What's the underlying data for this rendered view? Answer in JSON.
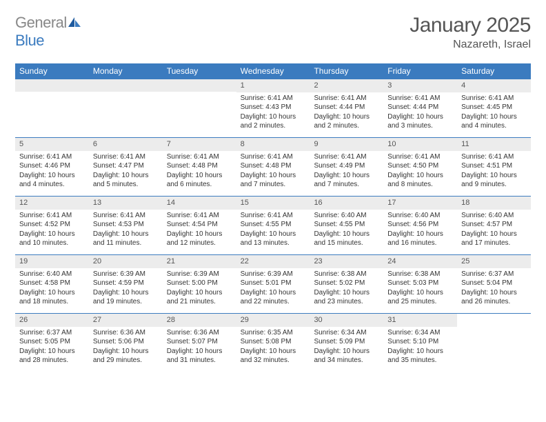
{
  "logo": {
    "text_gray": "General",
    "text_blue": "Blue"
  },
  "header": {
    "month_title": "January 2025",
    "location": "Nazareth, Israel"
  },
  "colors": {
    "header_bg": "#3b7bbf",
    "day_num_bg": "#ececec",
    "week_divider": "#3b7bbf",
    "text": "#333333",
    "title_text": "#555555",
    "logo_gray": "#888888",
    "logo_blue": "#3b7bbf"
  },
  "day_names": [
    "Sunday",
    "Monday",
    "Tuesday",
    "Wednesday",
    "Thursday",
    "Friday",
    "Saturday"
  ],
  "weeks": [
    [
      null,
      null,
      null,
      {
        "num": "1",
        "sunrise": "Sunrise: 6:41 AM",
        "sunset": "Sunset: 4:43 PM",
        "daylight": "Daylight: 10 hours and 2 minutes."
      },
      {
        "num": "2",
        "sunrise": "Sunrise: 6:41 AM",
        "sunset": "Sunset: 4:44 PM",
        "daylight": "Daylight: 10 hours and 2 minutes."
      },
      {
        "num": "3",
        "sunrise": "Sunrise: 6:41 AM",
        "sunset": "Sunset: 4:44 PM",
        "daylight": "Daylight: 10 hours and 3 minutes."
      },
      {
        "num": "4",
        "sunrise": "Sunrise: 6:41 AM",
        "sunset": "Sunset: 4:45 PM",
        "daylight": "Daylight: 10 hours and 4 minutes."
      }
    ],
    [
      {
        "num": "5",
        "sunrise": "Sunrise: 6:41 AM",
        "sunset": "Sunset: 4:46 PM",
        "daylight": "Daylight: 10 hours and 4 minutes."
      },
      {
        "num": "6",
        "sunrise": "Sunrise: 6:41 AM",
        "sunset": "Sunset: 4:47 PM",
        "daylight": "Daylight: 10 hours and 5 minutes."
      },
      {
        "num": "7",
        "sunrise": "Sunrise: 6:41 AM",
        "sunset": "Sunset: 4:48 PM",
        "daylight": "Daylight: 10 hours and 6 minutes."
      },
      {
        "num": "8",
        "sunrise": "Sunrise: 6:41 AM",
        "sunset": "Sunset: 4:48 PM",
        "daylight": "Daylight: 10 hours and 7 minutes."
      },
      {
        "num": "9",
        "sunrise": "Sunrise: 6:41 AM",
        "sunset": "Sunset: 4:49 PM",
        "daylight": "Daylight: 10 hours and 7 minutes."
      },
      {
        "num": "10",
        "sunrise": "Sunrise: 6:41 AM",
        "sunset": "Sunset: 4:50 PM",
        "daylight": "Daylight: 10 hours and 8 minutes."
      },
      {
        "num": "11",
        "sunrise": "Sunrise: 6:41 AM",
        "sunset": "Sunset: 4:51 PM",
        "daylight": "Daylight: 10 hours and 9 minutes."
      }
    ],
    [
      {
        "num": "12",
        "sunrise": "Sunrise: 6:41 AM",
        "sunset": "Sunset: 4:52 PM",
        "daylight": "Daylight: 10 hours and 10 minutes."
      },
      {
        "num": "13",
        "sunrise": "Sunrise: 6:41 AM",
        "sunset": "Sunset: 4:53 PM",
        "daylight": "Daylight: 10 hours and 11 minutes."
      },
      {
        "num": "14",
        "sunrise": "Sunrise: 6:41 AM",
        "sunset": "Sunset: 4:54 PM",
        "daylight": "Daylight: 10 hours and 12 minutes."
      },
      {
        "num": "15",
        "sunrise": "Sunrise: 6:41 AM",
        "sunset": "Sunset: 4:55 PM",
        "daylight": "Daylight: 10 hours and 13 minutes."
      },
      {
        "num": "16",
        "sunrise": "Sunrise: 6:40 AM",
        "sunset": "Sunset: 4:55 PM",
        "daylight": "Daylight: 10 hours and 15 minutes."
      },
      {
        "num": "17",
        "sunrise": "Sunrise: 6:40 AM",
        "sunset": "Sunset: 4:56 PM",
        "daylight": "Daylight: 10 hours and 16 minutes."
      },
      {
        "num": "18",
        "sunrise": "Sunrise: 6:40 AM",
        "sunset": "Sunset: 4:57 PM",
        "daylight": "Daylight: 10 hours and 17 minutes."
      }
    ],
    [
      {
        "num": "19",
        "sunrise": "Sunrise: 6:40 AM",
        "sunset": "Sunset: 4:58 PM",
        "daylight": "Daylight: 10 hours and 18 minutes."
      },
      {
        "num": "20",
        "sunrise": "Sunrise: 6:39 AM",
        "sunset": "Sunset: 4:59 PM",
        "daylight": "Daylight: 10 hours and 19 minutes."
      },
      {
        "num": "21",
        "sunrise": "Sunrise: 6:39 AM",
        "sunset": "Sunset: 5:00 PM",
        "daylight": "Daylight: 10 hours and 21 minutes."
      },
      {
        "num": "22",
        "sunrise": "Sunrise: 6:39 AM",
        "sunset": "Sunset: 5:01 PM",
        "daylight": "Daylight: 10 hours and 22 minutes."
      },
      {
        "num": "23",
        "sunrise": "Sunrise: 6:38 AM",
        "sunset": "Sunset: 5:02 PM",
        "daylight": "Daylight: 10 hours and 23 minutes."
      },
      {
        "num": "24",
        "sunrise": "Sunrise: 6:38 AM",
        "sunset": "Sunset: 5:03 PM",
        "daylight": "Daylight: 10 hours and 25 minutes."
      },
      {
        "num": "25",
        "sunrise": "Sunrise: 6:37 AM",
        "sunset": "Sunset: 5:04 PM",
        "daylight": "Daylight: 10 hours and 26 minutes."
      }
    ],
    [
      {
        "num": "26",
        "sunrise": "Sunrise: 6:37 AM",
        "sunset": "Sunset: 5:05 PM",
        "daylight": "Daylight: 10 hours and 28 minutes."
      },
      {
        "num": "27",
        "sunrise": "Sunrise: 6:36 AM",
        "sunset": "Sunset: 5:06 PM",
        "daylight": "Daylight: 10 hours and 29 minutes."
      },
      {
        "num": "28",
        "sunrise": "Sunrise: 6:36 AM",
        "sunset": "Sunset: 5:07 PM",
        "daylight": "Daylight: 10 hours and 31 minutes."
      },
      {
        "num": "29",
        "sunrise": "Sunrise: 6:35 AM",
        "sunset": "Sunset: 5:08 PM",
        "daylight": "Daylight: 10 hours and 32 minutes."
      },
      {
        "num": "30",
        "sunrise": "Sunrise: 6:34 AM",
        "sunset": "Sunset: 5:09 PM",
        "daylight": "Daylight: 10 hours and 34 minutes."
      },
      {
        "num": "31",
        "sunrise": "Sunrise: 6:34 AM",
        "sunset": "Sunset: 5:10 PM",
        "daylight": "Daylight: 10 hours and 35 minutes."
      },
      null
    ]
  ]
}
